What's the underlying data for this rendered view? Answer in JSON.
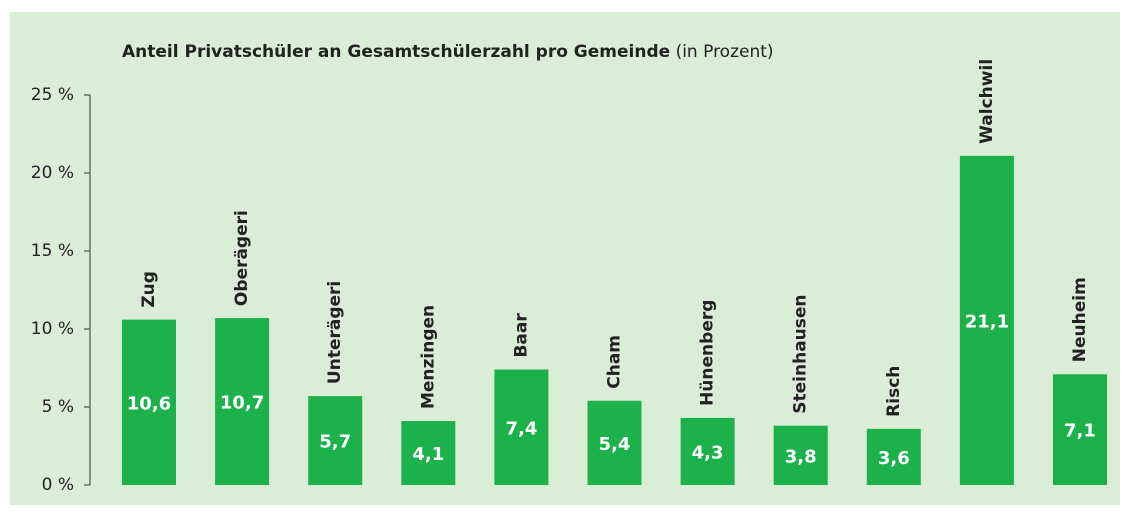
{
  "chart_data": {
    "type": "bar",
    "title": "Anteil Privatschüler an Gesamtschülerzahl pro Gemeinde",
    "subtitle": "(in Prozent)",
    "categories": [
      "Zug",
      "Oberägeri",
      "Unterägeri",
      "Menzingen",
      "Baar",
      "Cham",
      "Hünenberg",
      "Steinhausen",
      "Risch",
      "Walchwil",
      "Neuheim"
    ],
    "values": [
      10.6,
      10.7,
      5.7,
      4.1,
      7.4,
      5.4,
      4.3,
      3.8,
      3.6,
      21.1,
      7.1
    ],
    "value_labels": [
      "10,6",
      "10,7",
      "5,7",
      "4,1",
      "7,4",
      "5,4",
      "4,3",
      "3,8",
      "3,6",
      "21,1",
      "7,1"
    ],
    "color": "#1db14b",
    "ylim": [
      0,
      25
    ],
    "yticks": [
      {
        "value": 0,
        "label": "0 %"
      },
      {
        "value": 5,
        "label": "5 %"
      },
      {
        "value": 10,
        "label": "10 %"
      },
      {
        "value": 15,
        "label": "15 %"
      },
      {
        "value": 20,
        "label": "20 %"
      },
      {
        "value": 25,
        "label": "25 %"
      }
    ],
    "grid": false
  }
}
